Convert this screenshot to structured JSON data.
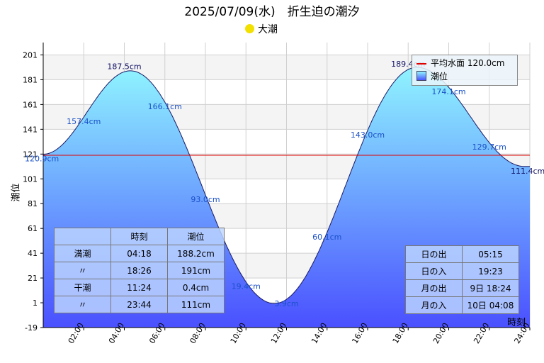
{
  "title": "2025/07/09(水)　折生迫の潮汐",
  "moon_phase": "大潮",
  "colors": {
    "mean_line": "#e00000",
    "fill_top": "#8ff4ff",
    "fill_bottom": "#4a50ff",
    "curve": "#1a1a66",
    "label": "#1a50c8"
  },
  "chart_data": {
    "type": "area",
    "ylabel": "潮位",
    "xunit": "時刻",
    "x_unit": "hours",
    "ylim": [
      -19,
      211
    ],
    "xlim": [
      0,
      24
    ],
    "grid": true,
    "legend_position": "top-right",
    "y_ticks": [
      "201",
      "181",
      "161",
      "141",
      "121",
      "101",
      "81",
      "61",
      "41",
      "21",
      "1",
      "-19"
    ],
    "x_ticks": [
      "02:00",
      "04:00",
      "06:00",
      "08:00",
      "10:00",
      "12:00",
      "14:00",
      "16:00",
      "18:00",
      "20:00",
      "22:00",
      "24:00"
    ],
    "series": [
      {
        "name": "潮位",
        "x": [
          0,
          4.3,
          11.4,
          18.43,
          23.73
        ],
        "y": [
          120.9,
          188.2,
          0.4,
          191,
          111
        ]
      }
    ],
    "mean_level": {
      "name": "平均水面 120.0cm",
      "value": 120.0
    },
    "data_labels": [
      {
        "x": 0,
        "y": 120.9,
        "text": "120.9cm"
      },
      {
        "x": 2,
        "y": 157.4,
        "text": "157.4cm"
      },
      {
        "x": 4,
        "y": 187.5,
        "text": "187.5cm"
      },
      {
        "x": 6,
        "y": 166.1,
        "text": "166.1cm"
      },
      {
        "x": 8,
        "y": 93.0,
        "text": "93.0cm"
      },
      {
        "x": 10,
        "y": 19.4,
        "text": "19.4cm"
      },
      {
        "x": 12,
        "y": 3.9,
        "text": "3.9cm"
      },
      {
        "x": 14,
        "y": 60.1,
        "text": "60.1cm"
      },
      {
        "x": 16,
        "y": 143.0,
        "text": "143.0cm"
      },
      {
        "x": 18,
        "y": 189.4,
        "text": "189.4cm"
      },
      {
        "x": 20,
        "y": 174.1,
        "text": "174.1cm"
      },
      {
        "x": 22,
        "y": 129.7,
        "text": "129.7cm"
      },
      {
        "x": 24,
        "y": 111.4,
        "text": "111.4cm"
      }
    ]
  },
  "legend": {
    "mean": "平均水面 120.0cm",
    "tide": "潮位"
  },
  "tide_table": {
    "headers": [
      "",
      "時刻",
      "潮位"
    ],
    "rows": [
      [
        "満潮",
        "04:18",
        "188.2cm"
      ],
      [
        "〃",
        "18:26",
        "191cm"
      ],
      [
        "干潮",
        "11:24",
        "0.4cm"
      ],
      [
        "〃",
        "23:44",
        "111cm"
      ]
    ]
  },
  "sun_table": {
    "rows": [
      [
        "日の出",
        "05:15"
      ],
      [
        "日の入",
        "19:23"
      ],
      [
        "月の出",
        "9日 18:24"
      ],
      [
        "月の入",
        "10日 04:08"
      ]
    ]
  }
}
